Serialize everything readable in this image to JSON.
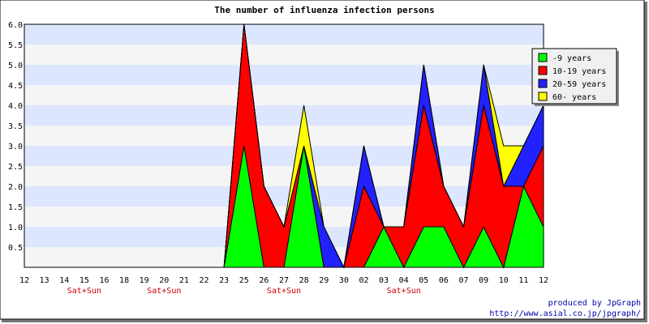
{
  "chart_data": {
    "type": "area",
    "stacked": true,
    "title": "The number of influenza infection persons",
    "x": [
      "12",
      "13",
      "14",
      "15",
      "16",
      "18",
      "19",
      "20",
      "21",
      "22",
      "23",
      "25",
      "26",
      "27",
      "28",
      "29",
      "30",
      "02",
      "03",
      "04",
      "05",
      "06",
      "07",
      "09",
      "10",
      "11",
      "12"
    ],
    "weekend_labels": [
      {
        "x": "15",
        "text": "Sat+Sun"
      },
      {
        "x": "20",
        "text": "Sat+Sun"
      },
      {
        "x": "27",
        "text": "Sat+Sun"
      },
      {
        "x": "04",
        "text": "Sat+Sun"
      }
    ],
    "ylim": [
      0,
      6
    ],
    "yticks": [
      "0.5",
      "1.0",
      "1.5",
      "2.0",
      "2.5",
      "3.0",
      "3.5",
      "4.0",
      "4.5",
      "5.0",
      "5.5",
      "6.0"
    ],
    "series": [
      {
        "name": "-9 years",
        "color": "#00ff00",
        "values": [
          0,
          0,
          0,
          0,
          0,
          0,
          0,
          0,
          0,
          0,
          0,
          3,
          0,
          0,
          3,
          0,
          0,
          0,
          1,
          0,
          1,
          1,
          0,
          1,
          0,
          2,
          1
        ]
      },
      {
        "name": "10-19 years",
        "color": "#ff0000",
        "values": [
          0,
          0,
          0,
          0,
          0,
          0,
          0,
          0,
          0,
          0,
          0,
          3,
          2,
          1,
          0,
          0,
          0,
          2,
          0,
          1,
          3,
          1,
          1,
          3,
          2,
          0,
          2
        ]
      },
      {
        "name": "20-59 years",
        "color": "#2222ff",
        "values": [
          0,
          0,
          0,
          0,
          0,
          0,
          0,
          0,
          0,
          0,
          0,
          0,
          0,
          0,
          0,
          1,
          0,
          1,
          0,
          0,
          1,
          0,
          0,
          1,
          0,
          1,
          1
        ]
      },
      {
        "name": "60- years",
        "color": "#ffff00",
        "values": [
          0,
          0,
          0,
          0,
          0,
          0,
          0,
          0,
          0,
          0,
          0,
          0,
          0,
          0,
          1,
          0,
          0,
          0,
          0,
          0,
          0,
          0,
          0,
          0,
          1,
          0,
          0
        ]
      }
    ],
    "grid": true,
    "band_colors": [
      "#dde6ff",
      "#f5f5f5"
    ],
    "legend_position": "top-right"
  },
  "credits": {
    "line1": "produced by JpGraph",
    "line2": "http://www.asial.co.jp/jpgraph/"
  }
}
